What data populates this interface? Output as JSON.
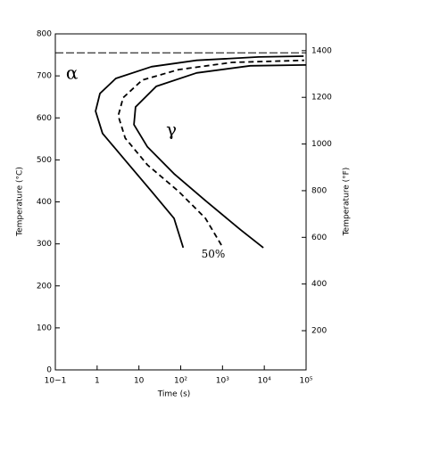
{
  "chart_data": {
    "type": "line",
    "xlabel": "Time (s)",
    "ylabel": "Temperature (°C)",
    "y2label": "Temperature (°F)",
    "xscale": "log",
    "xlim": [
      0.1,
      100000
    ],
    "xticks": [
      {
        "value": 0.1,
        "label": "10−1"
      },
      1,
      10,
      {
        "value": 100,
        "label": "10²"
      },
      {
        "value": 1000,
        "label": "10³"
      },
      {
        "value": 10000,
        "label": "10⁴"
      },
      {
        "value": 100000,
        "label": "10⁵"
      }
    ],
    "ylim": [
      0,
      800
    ],
    "yticks": [
      0,
      100,
      200,
      300,
      400,
      500,
      600,
      700,
      800
    ],
    "y2lim": [
      32,
      1472
    ],
    "y2ticks": [
      200,
      400,
      600,
      800,
      1000,
      1200,
      1400
    ],
    "grid": false,
    "reference_line": {
      "value": 755,
      "style": "dashed",
      "color": "#000000"
    },
    "series": [
      {
        "color": "#000000",
        "style": "solid",
        "x": [
          115,
          69,
          20,
          4.7,
          1.35,
          0.92,
          1.17,
          2.8,
          20,
          240,
          7400,
          87000
        ],
        "values": [
          291,
          361,
          425,
          499,
          563,
          616,
          658,
          694,
          722,
          737,
          745,
          747
        ]
      },
      {
        "color": "#000000",
        "style": "dashed",
        "x": [
          940,
          390,
          89,
          16,
          4.7,
          3.2,
          4.2,
          12,
          89,
          1700,
          90000
        ],
        "values": [
          297,
          361,
          425,
          488,
          552,
          605,
          648,
          690,
          715,
          732,
          737
        ]
      },
      {
        "color": "#000000",
        "style": "solid",
        "x": [
          9500,
          2750,
          390,
          69,
          16,
          7.6,
          8.3,
          26,
          240,
          4600,
          100000
        ],
        "values": [
          291,
          333,
          403,
          467,
          531,
          584,
          626,
          675,
          707,
          724,
          726
        ]
      }
    ],
    "annotations": [
      {
        "text": "α",
        "x": 0.25,
        "y": 705
      },
      {
        "text": "γ",
        "x": 60,
        "y": 570
      },
      {
        "text": "50%",
        "x": 600,
        "y": 275
      }
    ]
  }
}
